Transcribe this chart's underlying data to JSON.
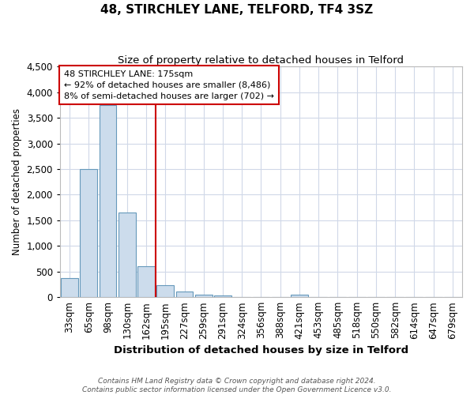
{
  "title": "48, STIRCHLEY LANE, TELFORD, TF4 3SZ",
  "subtitle": "Size of property relative to detached houses in Telford",
  "xlabel": "Distribution of detached houses by size in Telford",
  "ylabel": "Number of detached properties",
  "bar_labels": [
    "33sqm",
    "65sqm",
    "98sqm",
    "130sqm",
    "162sqm",
    "195sqm",
    "227sqm",
    "259sqm",
    "291sqm",
    "324sqm",
    "356sqm",
    "388sqm",
    "421sqm",
    "453sqm",
    "485sqm",
    "518sqm",
    "550sqm",
    "582sqm",
    "614sqm",
    "647sqm",
    "679sqm"
  ],
  "bar_values": [
    370,
    2500,
    3750,
    1650,
    600,
    240,
    110,
    55,
    35,
    0,
    0,
    0,
    50,
    0,
    0,
    0,
    0,
    0,
    0,
    0,
    0
  ],
  "property_line_bin": 4.5,
  "annotation_text": "48 STIRCHLEY LANE: 175sqm\n← 92% of detached houses are smaller (8,486)\n8% of semi-detached houses are larger (702) →",
  "bar_color": "#ccdcec",
  "bar_edgecolor": "#6699bb",
  "line_color": "#cc0000",
  "annotation_box_facecolor": "#ffffff",
  "annotation_box_edgecolor": "#cc0000",
  "footer_text": "Contains HM Land Registry data © Crown copyright and database right 2024.\nContains public sector information licensed under the Open Government Licence v3.0.",
  "ylim": [
    0,
    4500
  ],
  "background_color": "#ffffff",
  "plot_background": "#ffffff",
  "grid_color": "#d0d8e8"
}
